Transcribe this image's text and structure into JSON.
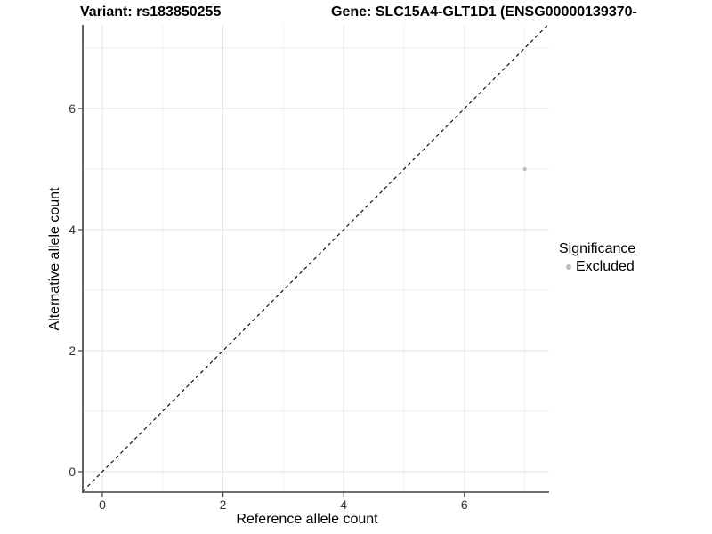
{
  "titles": {
    "variant": "Variant: rs183850255",
    "gene": "Gene: SLC15A4-GLT1D1 (ENSG00000139370-"
  },
  "axes": {
    "x_label": "Reference allele count",
    "y_label": "Alternative allele count"
  },
  "legend": {
    "title": "Significance",
    "items": [
      {
        "label": "Excluded",
        "color": "#bdbdbd",
        "marker": "dot"
      }
    ]
  },
  "colors": {
    "background": "#ffffff",
    "grid_major": "#e3e3e3",
    "grid_minor": "#f0f0f0",
    "axis_line": "#404040",
    "tick_text": "#333333",
    "point": "#bdbdbd",
    "reference_line": "#000000"
  },
  "chart_data": {
    "type": "scatter",
    "title": "Variant: rs183850255 / Gene: SLC15A4-GLT1D1 (ENSG00000139370-",
    "xlabel": "Reference allele count",
    "ylabel": "Alternative allele count",
    "xlim": [
      -0.324,
      7.404
    ],
    "ylim": [
      -0.338,
      7.382
    ],
    "x_major_ticks": [
      0,
      2,
      4,
      6
    ],
    "y_major_ticks": [
      0,
      2,
      4,
      6
    ],
    "x_minor_gridlines": [
      1,
      3,
      5,
      7
    ],
    "y_minor_gridlines": [
      1,
      3,
      5,
      7
    ],
    "grid": true,
    "legend_position": "right-center",
    "series": [
      {
        "name": "Excluded",
        "color": "#bdbdbd",
        "points": [
          {
            "x": 7,
            "y": 5
          }
        ]
      }
    ],
    "reference_line": {
      "type": "identity",
      "style": "dashed",
      "color": "#000000"
    }
  }
}
